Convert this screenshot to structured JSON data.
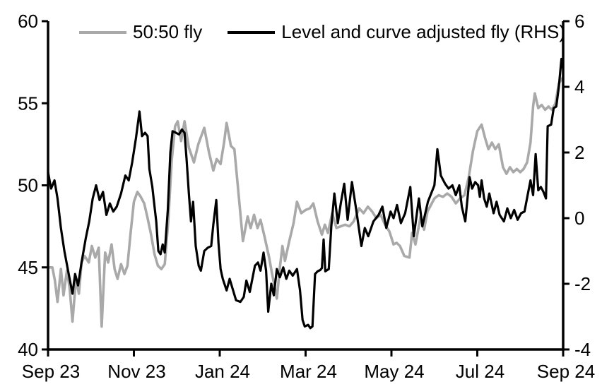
{
  "figure": {
    "background": "#ffffff",
    "axis_color": "#000000"
  },
  "chart_data": {
    "type": "line",
    "title": "",
    "grid": false,
    "legend_position": "top",
    "x_axis": {
      "unit": "months",
      "range_months": [
        0,
        12
      ],
      "tick_positions_months": [
        0,
        2,
        4,
        6,
        8,
        10,
        12
      ],
      "tick_labels": [
        "Sep 23",
        "Nov 23",
        "Jan 24",
        "Mar 24",
        "May 24",
        "Jul 24",
        "Sep 24"
      ]
    },
    "left_axis": {
      "range": [
        40,
        60
      ],
      "tick_values": [
        40,
        45,
        50,
        55,
        60
      ],
      "tick_labels": [
        "40",
        "45",
        "50",
        "55",
        "60"
      ]
    },
    "right_axis": {
      "range": [
        -4,
        6
      ],
      "tick_values": [
        -4,
        -2,
        0,
        2,
        4,
        6
      ],
      "tick_labels": [
        "-4",
        "-2",
        "0",
        "2",
        "4",
        "6"
      ]
    },
    "series": [
      {
        "name": "50:50 fly",
        "axis": "left",
        "color": "#a9a9a9",
        "stroke_width": 3.6,
        "points": [
          [
            0.0,
            45.0
          ],
          [
            0.1,
            45.0
          ],
          [
            0.16,
            44.2
          ],
          [
            0.22,
            42.9
          ],
          [
            0.3,
            44.9
          ],
          [
            0.36,
            43.3
          ],
          [
            0.44,
            44.8
          ],
          [
            0.5,
            43.8
          ],
          [
            0.57,
            41.7
          ],
          [
            0.65,
            44.3
          ],
          [
            0.72,
            43.4
          ],
          [
            0.78,
            45.3
          ],
          [
            0.85,
            45.7
          ],
          [
            0.95,
            45.3
          ],
          [
            1.02,
            46.3
          ],
          [
            1.1,
            45.6
          ],
          [
            1.18,
            46.2
          ],
          [
            1.25,
            41.4
          ],
          [
            1.33,
            45.9
          ],
          [
            1.4,
            45.3
          ],
          [
            1.48,
            46.4
          ],
          [
            1.55,
            44.9
          ],
          [
            1.62,
            44.3
          ],
          [
            1.7,
            45.2
          ],
          [
            1.78,
            44.6
          ],
          [
            1.85,
            45.1
          ],
          [
            1.92,
            47.0
          ],
          [
            2.0,
            49.0
          ],
          [
            2.08,
            49.6
          ],
          [
            2.16,
            49.3
          ],
          [
            2.24,
            48.9
          ],
          [
            2.32,
            48.0
          ],
          [
            2.4,
            47.0
          ],
          [
            2.48,
            45.8
          ],
          [
            2.56,
            45.1
          ],
          [
            2.64,
            44.9
          ],
          [
            2.72,
            45.2
          ],
          [
            2.8,
            47.8
          ],
          [
            2.88,
            51.5
          ],
          [
            2.96,
            53.6
          ],
          [
            3.02,
            53.9
          ],
          [
            3.1,
            52.7
          ],
          [
            3.18,
            53.9
          ],
          [
            3.28,
            52.3
          ],
          [
            3.4,
            51.4
          ],
          [
            3.5,
            52.5
          ],
          [
            3.64,
            53.5
          ],
          [
            3.75,
            52.0
          ],
          [
            3.85,
            50.9
          ],
          [
            3.93,
            51.6
          ],
          [
            4.02,
            51.3
          ],
          [
            4.1,
            52.6
          ],
          [
            4.16,
            53.8
          ],
          [
            4.26,
            52.4
          ],
          [
            4.34,
            52.2
          ],
          [
            4.42,
            50.0
          ],
          [
            4.54,
            46.6
          ],
          [
            4.65,
            48.1
          ],
          [
            4.72,
            47.4
          ],
          [
            4.8,
            48.2
          ],
          [
            4.88,
            47.4
          ],
          [
            4.95,
            47.9
          ],
          [
            5.05,
            46.8
          ],
          [
            5.15,
            45.6
          ],
          [
            5.22,
            44.6
          ],
          [
            5.28,
            43.8
          ],
          [
            5.33,
            43.1
          ],
          [
            5.4,
            45.0
          ],
          [
            5.46,
            46.3
          ],
          [
            5.52,
            45.4
          ],
          [
            5.62,
            46.6
          ],
          [
            5.72,
            47.7
          ],
          [
            5.8,
            49.0
          ],
          [
            5.9,
            48.3
          ],
          [
            6.0,
            48.5
          ],
          [
            6.1,
            48.6
          ],
          [
            6.18,
            48.9
          ],
          [
            6.28,
            47.8
          ],
          [
            6.38,
            47.0
          ],
          [
            6.45,
            47.6
          ],
          [
            6.52,
            47.1
          ],
          [
            6.62,
            48.3
          ],
          [
            6.72,
            47.4
          ],
          [
            6.82,
            47.5
          ],
          [
            6.92,
            47.6
          ],
          [
            7.02,
            47.5
          ],
          [
            7.12,
            47.8
          ],
          [
            7.25,
            48.6
          ],
          [
            7.35,
            48.3
          ],
          [
            7.45,
            48.7
          ],
          [
            7.55,
            48.4
          ],
          [
            7.65,
            48.0
          ],
          [
            7.75,
            48.2
          ],
          [
            7.85,
            47.6
          ],
          [
            7.95,
            47.2
          ],
          [
            8.05,
            46.4
          ],
          [
            8.12,
            46.5
          ],
          [
            8.2,
            46.3
          ],
          [
            8.3,
            45.7
          ],
          [
            8.42,
            45.6
          ],
          [
            8.48,
            47.1
          ],
          [
            8.56,
            46.4
          ],
          [
            8.68,
            48.1
          ],
          [
            8.76,
            47.3
          ],
          [
            8.84,
            48.4
          ],
          [
            8.92,
            48.8
          ],
          [
            9.0,
            49.2
          ],
          [
            9.1,
            49.4
          ],
          [
            9.2,
            49.3
          ],
          [
            9.3,
            49.5
          ],
          [
            9.4,
            49.3
          ],
          [
            9.5,
            48.9
          ],
          [
            9.6,
            49.2
          ],
          [
            9.7,
            49.4
          ],
          [
            9.8,
            50.5
          ],
          [
            9.9,
            52.1
          ],
          [
            10.0,
            53.3
          ],
          [
            10.1,
            53.7
          ],
          [
            10.18,
            52.9
          ],
          [
            10.26,
            52.2
          ],
          [
            10.34,
            52.6
          ],
          [
            10.42,
            52.2
          ],
          [
            10.5,
            52.5
          ],
          [
            10.6,
            51.1
          ],
          [
            10.68,
            50.7
          ],
          [
            10.76,
            51.1
          ],
          [
            10.84,
            50.8
          ],
          [
            10.92,
            51.0
          ],
          [
            11.0,
            50.8
          ],
          [
            11.08,
            51.0
          ],
          [
            11.16,
            51.4
          ],
          [
            11.24,
            52.6
          ],
          [
            11.3,
            54.8
          ],
          [
            11.34,
            55.6
          ],
          [
            11.42,
            54.7
          ],
          [
            11.5,
            54.9
          ],
          [
            11.58,
            54.6
          ],
          [
            11.66,
            54.8
          ],
          [
            11.74,
            54.6
          ],
          [
            11.82,
            55.0
          ],
          [
            11.9,
            56.2
          ],
          [
            12.0,
            56.6
          ]
        ]
      },
      {
        "name": "Level and curve adjusted fly (RHS)",
        "axis": "right",
        "color": "#000000",
        "stroke_width": 3.2,
        "points": [
          [
            0.0,
            1.4
          ],
          [
            0.07,
            0.9
          ],
          [
            0.15,
            1.15
          ],
          [
            0.22,
            0.6
          ],
          [
            0.3,
            -0.3
          ],
          [
            0.38,
            -1.0
          ],
          [
            0.46,
            -1.55
          ],
          [
            0.57,
            -2.3
          ],
          [
            0.63,
            -1.7
          ],
          [
            0.7,
            -2.05
          ],
          [
            0.78,
            -1.35
          ],
          [
            0.88,
            -0.6
          ],
          [
            0.96,
            -0.1
          ],
          [
            1.04,
            0.6
          ],
          [
            1.12,
            1.0
          ],
          [
            1.2,
            0.55
          ],
          [
            1.28,
            0.8
          ],
          [
            1.36,
            0.1
          ],
          [
            1.44,
            0.45
          ],
          [
            1.52,
            0.2
          ],
          [
            1.6,
            0.35
          ],
          [
            1.7,
            0.75
          ],
          [
            1.8,
            1.3
          ],
          [
            1.88,
            1.15
          ],
          [
            1.96,
            1.7
          ],
          [
            2.05,
            2.45
          ],
          [
            2.13,
            3.25
          ],
          [
            2.19,
            2.5
          ],
          [
            2.26,
            2.6
          ],
          [
            2.32,
            2.5
          ],
          [
            2.36,
            1.5
          ],
          [
            2.43,
            0.95
          ],
          [
            2.46,
            0.6
          ],
          [
            2.52,
            -0.1
          ],
          [
            2.57,
            -1.0
          ],
          [
            2.62,
            -1.1
          ],
          [
            2.67,
            -0.8
          ],
          [
            2.72,
            -1.05
          ],
          [
            2.79,
            0.25
          ],
          [
            2.85,
            2.0
          ],
          [
            2.9,
            2.65
          ],
          [
            2.98,
            2.6
          ],
          [
            3.05,
            2.55
          ],
          [
            3.12,
            2.7
          ],
          [
            3.18,
            2.6
          ],
          [
            3.23,
            1.75
          ],
          [
            3.28,
            0.75
          ],
          [
            3.33,
            -0.1
          ],
          [
            3.38,
            0.5
          ],
          [
            3.44,
            -0.85
          ],
          [
            3.51,
            -1.45
          ],
          [
            3.56,
            -1.6
          ],
          [
            3.64,
            -1.0
          ],
          [
            3.72,
            -0.9
          ],
          [
            3.8,
            -0.85
          ],
          [
            3.85,
            -0.2
          ],
          [
            3.92,
            0.55
          ],
          [
            3.97,
            -0.75
          ],
          [
            4.02,
            -1.55
          ],
          [
            4.07,
            -1.85
          ],
          [
            4.16,
            -2.2
          ],
          [
            4.23,
            -1.85
          ],
          [
            4.38,
            -2.5
          ],
          [
            4.48,
            -2.55
          ],
          [
            4.56,
            -2.4
          ],
          [
            4.62,
            -1.9
          ],
          [
            4.7,
            -2.25
          ],
          [
            4.82,
            -1.45
          ],
          [
            4.89,
            -1.35
          ],
          [
            4.95,
            -1.6
          ],
          [
            5.02,
            -1.05
          ],
          [
            5.08,
            -1.6
          ],
          [
            5.13,
            -2.85
          ],
          [
            5.2,
            -2.0
          ],
          [
            5.26,
            -2.35
          ],
          [
            5.33,
            -1.55
          ],
          [
            5.4,
            -1.8
          ],
          [
            5.48,
            -1.5
          ],
          [
            5.55,
            -1.85
          ],
          [
            5.62,
            -1.6
          ],
          [
            5.7,
            -1.75
          ],
          [
            5.8,
            -1.55
          ],
          [
            5.87,
            -2.2
          ],
          [
            5.93,
            -3.1
          ],
          [
            5.98,
            -3.3
          ],
          [
            6.06,
            -3.25
          ],
          [
            6.11,
            -3.35
          ],
          [
            6.16,
            -3.3
          ],
          [
            6.22,
            -1.7
          ],
          [
            6.28,
            -1.62
          ],
          [
            6.34,
            -1.58
          ],
          [
            6.38,
            -1.52
          ],
          [
            6.42,
            -0.65
          ],
          [
            6.46,
            -1.62
          ],
          [
            6.54,
            -1.55
          ],
          [
            6.6,
            -0.25
          ],
          [
            6.67,
            0.75
          ],
          [
            6.75,
            -0.15
          ],
          [
            6.82,
            0.45
          ],
          [
            6.9,
            1.05
          ],
          [
            6.98,
            -0.05
          ],
          [
            7.08,
            1.1
          ],
          [
            7.18,
            0.25
          ],
          [
            7.3,
            -0.85
          ],
          [
            7.38,
            -0.3
          ],
          [
            7.46,
            -0.55
          ],
          [
            7.58,
            -0.1
          ],
          [
            7.7,
            0.1
          ],
          [
            7.79,
            0.35
          ],
          [
            7.88,
            -0.3
          ],
          [
            7.98,
            0.2
          ],
          [
            8.05,
            0.0
          ],
          [
            8.13,
            0.4
          ],
          [
            8.22,
            -0.15
          ],
          [
            8.32,
            0.15
          ],
          [
            8.44,
            0.95
          ],
          [
            8.52,
            -0.55
          ],
          [
            8.64,
            0.6
          ],
          [
            8.72,
            -0.25
          ],
          [
            8.85,
            0.5
          ],
          [
            9.0,
            1.0
          ],
          [
            9.07,
            2.1
          ],
          [
            9.15,
            1.3
          ],
          [
            9.25,
            1.05
          ],
          [
            9.33,
            0.9
          ],
          [
            9.42,
            1.0
          ],
          [
            9.5,
            0.7
          ],
          [
            9.58,
            1.0
          ],
          [
            9.64,
            0.35
          ],
          [
            9.72,
            -0.1
          ],
          [
            9.82,
            1.25
          ],
          [
            9.88,
            0.9
          ],
          [
            9.95,
            1.1
          ],
          [
            10.02,
            1.0
          ],
          [
            10.06,
            0.65
          ],
          [
            10.1,
            1.15
          ],
          [
            10.16,
            0.6
          ],
          [
            10.22,
            0.35
          ],
          [
            10.28,
            0.75
          ],
          [
            10.38,
            0.15
          ],
          [
            10.45,
            0.5
          ],
          [
            10.52,
            0.1
          ],
          [
            10.62,
            -0.1
          ],
          [
            10.7,
            0.3
          ],
          [
            10.78,
            0.0
          ],
          [
            10.86,
            0.25
          ],
          [
            10.94,
            -0.05
          ],
          [
            11.02,
            0.15
          ],
          [
            11.1,
            0.2
          ],
          [
            11.18,
            0.75
          ],
          [
            11.24,
            1.15
          ],
          [
            11.3,
            0.7
          ],
          [
            11.36,
            1.95
          ],
          [
            11.42,
            0.85
          ],
          [
            11.48,
            0.95
          ],
          [
            11.54,
            0.8
          ],
          [
            11.6,
            0.6
          ],
          [
            11.64,
            2.8
          ],
          [
            11.72,
            2.85
          ],
          [
            11.78,
            3.35
          ],
          [
            11.84,
            3.4
          ],
          [
            11.9,
            4.0
          ],
          [
            11.96,
            4.85
          ],
          [
            12.0,
            4.55
          ]
        ]
      }
    ]
  }
}
